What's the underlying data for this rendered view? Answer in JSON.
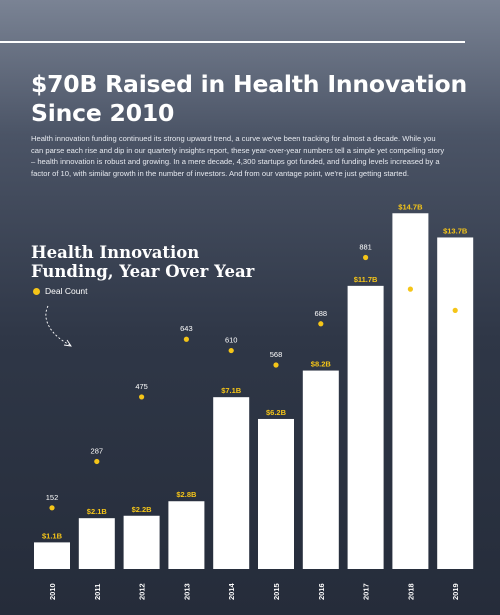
{
  "headline": "$70B Raised in Health Innovation Since 2010",
  "intro": "Health innovation funding continued its strong upward trend, a curve we've been tracking for almost a decade. While you can parse each rise and dip in our quarterly insights report, these year-over-year numbers tell a simple yet compelling story – health innovation is robust and growing. In a mere decade, 4,300 startups got funded, and funding levels increased by a factor of 10, with similar growth in the number of investors. And from our vantage point, we're just getting started.",
  "chart_title": "Health Innovation Funding, Year Over Year",
  "legend_label": "Deal Count",
  "colors": {
    "accent": "#f5c518",
    "bar": "#ffffff"
  },
  "chart_data": {
    "type": "bar",
    "title": "Health Innovation Funding, Year Over Year",
    "categories": [
      "2010",
      "2011",
      "2012",
      "2013",
      "2014",
      "2015",
      "2016",
      "2017",
      "2018",
      "2019"
    ],
    "series": [
      {
        "values": [
          1.1,
          2.1,
          2.2,
          2.8,
          7.1,
          6.2,
          8.2,
          11.7,
          14.7,
          13.7
        ],
        "labels": [
          "$1.1B",
          "$2.1B",
          "$2.2B",
          "$2.8B",
          "$7.1B",
          "$6.2B",
          "$8.2B",
          "$11.7B",
          "$14.7B",
          "$13.7B"
        ]
      },
      {
        "name": "Deal Count",
        "type": "scatter",
        "values": [
          152,
          287,
          475,
          643,
          610,
          568,
          688,
          881,
          789,
          727
        ]
      }
    ],
    "ylim": [
      0,
      15
    ],
    "deal_ylim": [
      0,
      900
    ],
    "grid": false,
    "legend": "top-left"
  }
}
